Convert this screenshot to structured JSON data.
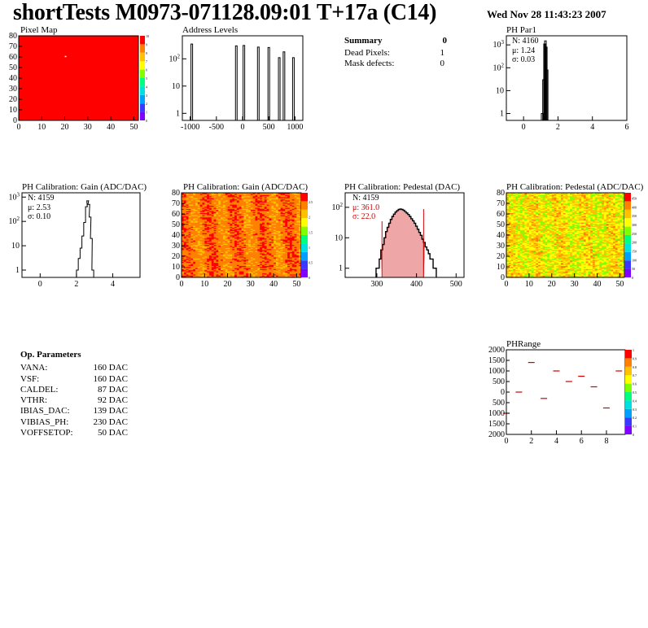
{
  "header": {
    "title": "shortTests M0973-071128.09:01 T+17a (C14)",
    "timestamp": "Wed Nov 28 11:43:23 2007"
  },
  "summary": {
    "heading": "Summary",
    "heading_value": "0",
    "rows": [
      {
        "label": "Dead Pixels:",
        "value": "1"
      },
      {
        "label": "Mask defects:",
        "value": "0"
      }
    ]
  },
  "op_parameters": {
    "heading": "Op. Parameters",
    "rows": [
      {
        "label": "VANA:",
        "value": "160 DAC"
      },
      {
        "label": "VSF:",
        "value": "160 DAC"
      },
      {
        "label": "CALDEL:",
        "value": "87 DAC"
      },
      {
        "label": "VTHR:",
        "value": "92 DAC"
      },
      {
        "label": "IBIAS_DAC:",
        "value": "139 DAC"
      },
      {
        "label": "VIBIAS_PH:",
        "value": "230 DAC"
      },
      {
        "label": "VOFFSETOP:",
        "value": "50 DAC"
      }
    ]
  },
  "colors": {
    "hist_line": "#000000",
    "map_red": "#ff0000",
    "fit_red": "#d00000",
    "palette": [
      "#7f00ff",
      "#3a3aff",
      "#00a0ff",
      "#00e0e0",
      "#00ff80",
      "#80ff00",
      "#ffff00",
      "#ffc000",
      "#ff8000",
      "#ff0000"
    ]
  },
  "chart_data": [
    {
      "id": "pixel_map",
      "type": "heatmap",
      "title": "Pixel Map",
      "xlim": [
        0,
        52
      ],
      "ylim": [
        0,
        80
      ],
      "xticks": [
        "0",
        "10",
        "20",
        "30",
        "40",
        "50"
      ],
      "yticks": [
        "0",
        "10",
        "20",
        "30",
        "40",
        "50",
        "60",
        "70",
        "80"
      ],
      "zticks": [
        "0",
        "1",
        "2",
        "3",
        "4",
        "5",
        "6",
        "7",
        "8",
        "9",
        "10"
      ],
      "fill_value": 10,
      "dead_pixel": {
        "x": 20,
        "y": 61
      }
    },
    {
      "id": "address_levels",
      "type": "bar",
      "title": "Address Levels",
      "log_y": true,
      "xlim": [
        -1150,
        1150
      ],
      "xticks": [
        "-1000",
        "-500",
        "0",
        "500",
        "1000"
      ],
      "yticks": [
        "1",
        "10",
        "10^2"
      ],
      "peaks": [
        {
          "x": -970,
          "count": 350
        },
        {
          "x": -120,
          "count": 300
        },
        {
          "x": 25,
          "count": 310
        },
        {
          "x": 300,
          "count": 270
        },
        {
          "x": 500,
          "count": 260
        },
        {
          "x": 700,
          "count": 110
        },
        {
          "x": 790,
          "count": 180
        },
        {
          "x": 970,
          "count": 110
        }
      ]
    },
    {
      "id": "ph_par1",
      "type": "bar",
      "title": "PH Par1",
      "log_y": true,
      "xlim": [
        -1,
        6
      ],
      "xticks": [
        "0",
        "2",
        "4",
        "6"
      ],
      "yticks": [
        "1",
        "10",
        "10^2",
        "10^3"
      ],
      "stats": {
        "N": "4160",
        "mean": "1.24",
        "sigma": "0.03"
      },
      "bins": [
        {
          "x": 1.08,
          "count": 1
        },
        {
          "x": 1.16,
          "count": 30
        },
        {
          "x": 1.22,
          "count": 1100
        },
        {
          "x": 1.27,
          "count": 1500
        },
        {
          "x": 1.32,
          "count": 800
        },
        {
          "x": 1.37,
          "count": 80
        }
      ]
    },
    {
      "id": "gain_hist",
      "type": "bar",
      "title": "PH Calibration: Gain (ADC/DAC)",
      "log_y": true,
      "xlim": [
        -1,
        5.5
      ],
      "xticks": [
        "0",
        "2",
        "4"
      ],
      "yticks": [
        "1",
        "10",
        "10^2",
        "10^3"
      ],
      "stats": {
        "N": "4159",
        "mean": "2.53",
        "sigma": "0.10"
      },
      "bins": [
        {
          "x": 2.05,
          "count": 1
        },
        {
          "x": 2.15,
          "count": 3
        },
        {
          "x": 2.25,
          "count": 8
        },
        {
          "x": 2.35,
          "count": 25
        },
        {
          "x": 2.45,
          "count": 90
        },
        {
          "x": 2.55,
          "count": 400
        },
        {
          "x": 2.62,
          "count": 700
        },
        {
          "x": 2.68,
          "count": 500
        },
        {
          "x": 2.75,
          "count": 150
        },
        {
          "x": 2.82,
          "count": 20
        },
        {
          "x": 2.9,
          "count": 1
        }
      ]
    },
    {
      "id": "gain_map",
      "type": "heatmap",
      "title": "PH Calibration: Gain (ADC/DAC)",
      "xlim": [
        0,
        52
      ],
      "ylim": [
        0,
        80
      ],
      "xticks": [
        "0",
        "10",
        "20",
        "30",
        "40",
        "50"
      ],
      "yticks": [
        "0",
        "10",
        "20",
        "30",
        "40",
        "50",
        "60",
        "70",
        "80"
      ],
      "zticks": [
        "0",
        "0.5",
        "1",
        "1.5",
        "2",
        "2.5"
      ],
      "zrange": [
        0,
        2.8
      ],
      "typical_value": 2.53
    },
    {
      "id": "pedestal_hist",
      "type": "bar",
      "title": "PH Calibration: Pedestal (DAC)",
      "log_y": true,
      "xlim": [
        220,
        520
      ],
      "xticks": [
        "300",
        "400",
        "500"
      ],
      "yticks": [
        "1",
        "10",
        "10^2"
      ],
      "stats": {
        "N": "4159",
        "mean": "361.0",
        "sigma": "22.0"
      },
      "fit_range": [
        313,
        418
      ],
      "bins": [
        {
          "x": 300,
          "count": 1
        },
        {
          "x": 304,
          "count": 1
        },
        {
          "x": 308,
          "count": 2
        },
        {
          "x": 312,
          "count": 4
        },
        {
          "x": 316,
          "count": 6
        },
        {
          "x": 320,
          "count": 10
        },
        {
          "x": 324,
          "count": 16
        },
        {
          "x": 328,
          "count": 22
        },
        {
          "x": 332,
          "count": 30
        },
        {
          "x": 336,
          "count": 40
        },
        {
          "x": 340,
          "count": 50
        },
        {
          "x": 344,
          "count": 60
        },
        {
          "x": 348,
          "count": 70
        },
        {
          "x": 352,
          "count": 78
        },
        {
          "x": 356,
          "count": 85
        },
        {
          "x": 360,
          "count": 88
        },
        {
          "x": 364,
          "count": 85
        },
        {
          "x": 368,
          "count": 80
        },
        {
          "x": 372,
          "count": 72
        },
        {
          "x": 376,
          "count": 65
        },
        {
          "x": 380,
          "count": 58
        },
        {
          "x": 384,
          "count": 50
        },
        {
          "x": 388,
          "count": 42
        },
        {
          "x": 392,
          "count": 36
        },
        {
          "x": 396,
          "count": 30
        },
        {
          "x": 400,
          "count": 24
        },
        {
          "x": 404,
          "count": 19
        },
        {
          "x": 408,
          "count": 15
        },
        {
          "x": 412,
          "count": 12
        },
        {
          "x": 416,
          "count": 9
        },
        {
          "x": 420,
          "count": 7
        },
        {
          "x": 424,
          "count": 5
        },
        {
          "x": 428,
          "count": 4
        },
        {
          "x": 432,
          "count": 3
        },
        {
          "x": 436,
          "count": 2
        },
        {
          "x": 440,
          "count": 2
        },
        {
          "x": 444,
          "count": 1
        },
        {
          "x": 448,
          "count": 1
        }
      ]
    },
    {
      "id": "pedestal_map",
      "type": "heatmap",
      "title": "PH Calibration: Pedestal (ADC/DAC)",
      "xlim": [
        0,
        52
      ],
      "ylim": [
        0,
        80
      ],
      "xticks": [
        "0",
        "10",
        "20",
        "30",
        "40",
        "50"
      ],
      "yticks": [
        "0",
        "10",
        "20",
        "30",
        "40",
        "50",
        "60",
        "70",
        "80"
      ],
      "zticks": [
        "0",
        "50",
        "100",
        "150",
        "200",
        "250",
        "300",
        "350",
        "400",
        "450"
      ],
      "zrange": [
        0,
        480
      ],
      "typical_value": 360
    },
    {
      "id": "ph_range",
      "type": "scatter",
      "title": "PHRange",
      "xlim": [
        0,
        9.5
      ],
      "ylim": [
        -2000,
        2000
      ],
      "xticks": [
        "0",
        "2",
        "4",
        "6",
        "8"
      ],
      "yticks": [
        "2000",
        "1500",
        "1000",
        "500",
        "0",
        "-500",
        "-1000",
        "-1500",
        "-2000"
      ],
      "zticks": [
        "0",
        "0.1",
        "0.2",
        "0.3",
        "0.4",
        "0.5",
        "0.6",
        "0.7",
        "0.8",
        "0.9",
        "1"
      ],
      "yticklabels_shown": [
        "2000",
        "1500",
        "1000",
        "500",
        "0",
        "500",
        "1000",
        "1500",
        "2000"
      ],
      "points": [
        {
          "x": 0,
          "y": -1000
        },
        {
          "x": 1,
          "y": 0
        },
        {
          "x": 2,
          "y": 1400
        },
        {
          "x": 3,
          "y": -300
        },
        {
          "x": 4,
          "y": 1000
        },
        {
          "x": 5,
          "y": 500
        },
        {
          "x": 6,
          "y": 750
        },
        {
          "x": 7,
          "y": 250
        },
        {
          "x": 8,
          "y": -750
        },
        {
          "x": 9,
          "y": 1000
        }
      ]
    }
  ]
}
